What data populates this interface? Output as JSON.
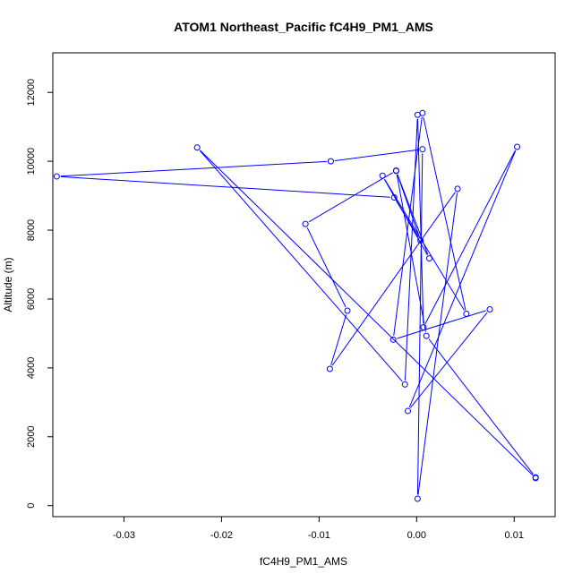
{
  "chart_data": {
    "type": "line",
    "title": "ATOM1 Northeast_Pacific fC4H9_PM1_AMS",
    "xlabel": "fC4H9_PM1_AMS",
    "ylabel": "Altitude (m)",
    "xlim": [
      -0.0373,
      0.0142
    ],
    "ylim": [
      -320,
      13150
    ],
    "x_ticks": [
      -0.03,
      -0.02,
      -0.01,
      0.0,
      0.01
    ],
    "x_tick_labels": [
      "-0.03",
      "-0.02",
      "-0.01",
      "0.00",
      "0.01"
    ],
    "y_ticks": [
      0,
      2000,
      4000,
      6000,
      8000,
      10000,
      12000
    ],
    "y_tick_labels": [
      "0",
      "2000",
      "4000",
      "6000",
      "8000",
      "10000",
      "12000"
    ],
    "line_color": "#0000ff",
    "points": [
      {
        "x": 0.0122,
        "y": 800
      },
      {
        "x": -0.0225,
        "y": 10400
      },
      {
        "x": -0.0012,
        "y": 3520
      },
      {
        "x": 0.0001,
        "y": 11350
      },
      {
        "x": 0.0007,
        "y": 5180
      },
      {
        "x": 0.0103,
        "y": 10420
      },
      {
        "x": -0.0009,
        "y": 2750
      },
      {
        "x": 0.0075,
        "y": 5700
      },
      {
        "x": -0.0024,
        "y": 4820
      },
      {
        "x": 0.0006,
        "y": 11400
      },
      {
        "x": 0.0051,
        "y": 5570
      },
      {
        "x": -0.0035,
        "y": 9580
      },
      {
        "x": 0.0013,
        "y": 7180
      },
      {
        "x": -0.0021,
        "y": 9720
      },
      {
        "x": 0.0004,
        "y": 7700
      },
      {
        "x": -0.0023,
        "y": 8950
      },
      {
        "x": -0.0369,
        "y": 9560
      },
      {
        "x": -0.0088,
        "y": 10000
      },
      {
        "x": 0.0006,
        "y": 10350
      },
      {
        "x": 0.0001,
        "y": 200
      },
      {
        "x": 0.0042,
        "y": 9200
      },
      {
        "x": -0.0089,
        "y": 3970
      },
      {
        "x": -0.0071,
        "y": 5660
      },
      {
        "x": -0.0114,
        "y": 8180
      },
      {
        "x": -0.0021,
        "y": 9730
      },
      {
        "x": 0.001,
        "y": 4930
      },
      {
        "x": 0.0122,
        "y": 820
      }
    ]
  }
}
